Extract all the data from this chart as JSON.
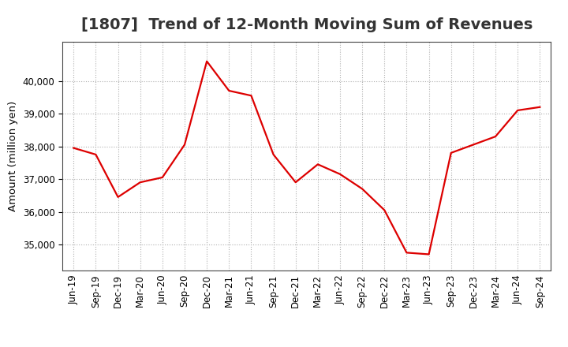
{
  "title": "[1807]  Trend of 12-Month Moving Sum of Revenues",
  "ylabel": "Amount (million yen)",
  "background_color": "#ffffff",
  "line_color": "#dd0000",
  "grid_color": "#b0b0b0",
  "x_labels": [
    "Jun-19",
    "Sep-19",
    "Dec-19",
    "Mar-20",
    "Jun-20",
    "Sep-20",
    "Dec-20",
    "Mar-21",
    "Jun-21",
    "Sep-21",
    "Dec-21",
    "Mar-22",
    "Jun-22",
    "Sep-22",
    "Dec-22",
    "Mar-23",
    "Jun-23",
    "Sep-23",
    "Dec-23",
    "Mar-24",
    "Jun-24",
    "Sep-24"
  ],
  "values": [
    37950,
    37750,
    36450,
    36900,
    37050,
    38050,
    40600,
    39700,
    39550,
    37750,
    36900,
    37450,
    37150,
    36700,
    36050,
    34750,
    34700,
    37800,
    38050,
    38300,
    39100,
    39200
  ],
  "ylim": [
    34200,
    41200
  ],
  "yticks": [
    35000,
    36000,
    37000,
    38000,
    39000,
    40000
  ],
  "title_fontsize": 14,
  "axis_fontsize": 9.5,
  "tick_fontsize": 8.5,
  "line_width": 1.6
}
